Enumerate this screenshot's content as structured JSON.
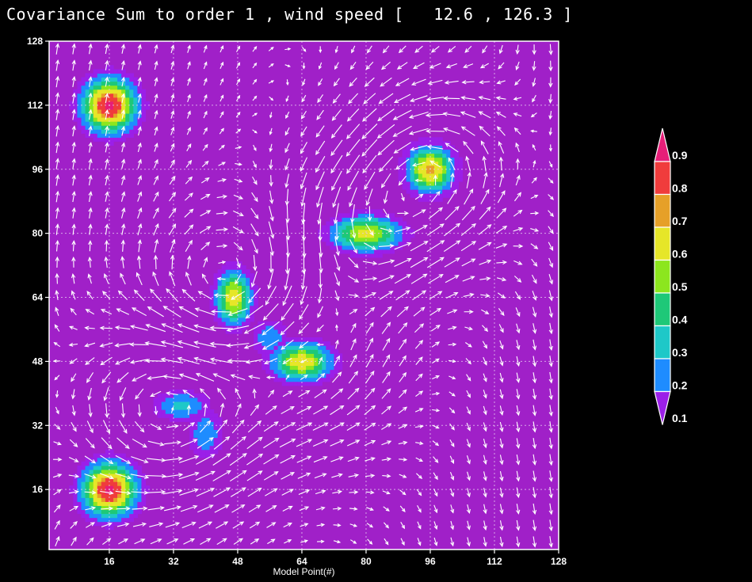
{
  "title": "Covariance Sum to order 1 , wind speed [   12.6 , 126.3 ]",
  "chart_data": {
    "type": "heatmap",
    "title": "Covariance Sum to order 1 , wind speed [   12.6 , 126.3 ]",
    "xlabel": "Model Point(#)",
    "ylabel": "",
    "xlim": [
      1,
      128
    ],
    "ylim": [
      1,
      128
    ],
    "xticks": [
      16,
      32,
      48,
      64,
      80,
      96,
      112,
      128
    ],
    "yticks": [
      16,
      32,
      48,
      64,
      80,
      96,
      112,
      128
    ],
    "wind_speed_range": [
      12.6,
      126.3
    ],
    "grid": true,
    "overlay": "wind vectors",
    "colorbar": {
      "levels": [
        0.1,
        0.2,
        0.3,
        0.4,
        0.5,
        0.6,
        0.7,
        0.8,
        0.9
      ],
      "labels": [
        "0.1",
        "0.2",
        "0.3",
        "0.4",
        "0.5",
        "0.6",
        "0.7",
        "0.8",
        "0.9"
      ],
      "colors": [
        "#9b1fe8",
        "#1e8cff",
        "#1ec8c8",
        "#1ec878",
        "#8ce61e",
        "#e6e628",
        "#e6a028",
        "#f03c3c",
        "#e61e78"
      ],
      "background_color": "#a020c8"
    },
    "blobs": [
      {
        "x": 16,
        "y": 112,
        "peak": 0.95,
        "sx": 4.5,
        "sy": 4.5
      },
      {
        "x": 16,
        "y": 16,
        "peak": 0.95,
        "sx": 4.5,
        "sy": 4.5
      },
      {
        "x": 96,
        "y": 96,
        "peak": 0.75,
        "sx": 4,
        "sy": 4
      },
      {
        "x": 80,
        "y": 80,
        "peak": 0.65,
        "sx": 6,
        "sy": 3
      },
      {
        "x": 47,
        "y": 64,
        "peak": 0.7,
        "sx": 3,
        "sy": 4.5
      },
      {
        "x": 64,
        "y": 48,
        "peak": 0.7,
        "sx": 5,
        "sy": 3.2
      },
      {
        "x": 56,
        "y": 54,
        "peak": 0.3,
        "sx": 3,
        "sy": 3
      },
      {
        "x": 34,
        "y": 37,
        "peak": 0.35,
        "sx": 4.5,
        "sy": 2.5
      },
      {
        "x": 40,
        "y": 30,
        "peak": 0.3,
        "sx": 3,
        "sy": 4
      }
    ],
    "vortices": [
      {
        "x": 96,
        "y": 96,
        "strength": 1.2,
        "radius": 14
      },
      {
        "x": 80,
        "y": 80,
        "strength": 1.0,
        "radius": 14
      },
      {
        "x": 64,
        "y": 50,
        "strength": 1.0,
        "radius": 16
      },
      {
        "x": 47,
        "y": 64,
        "strength": -0.9,
        "radius": 14
      },
      {
        "x": 32,
        "y": 36,
        "strength": 1.3,
        "radius": 16
      }
    ]
  }
}
